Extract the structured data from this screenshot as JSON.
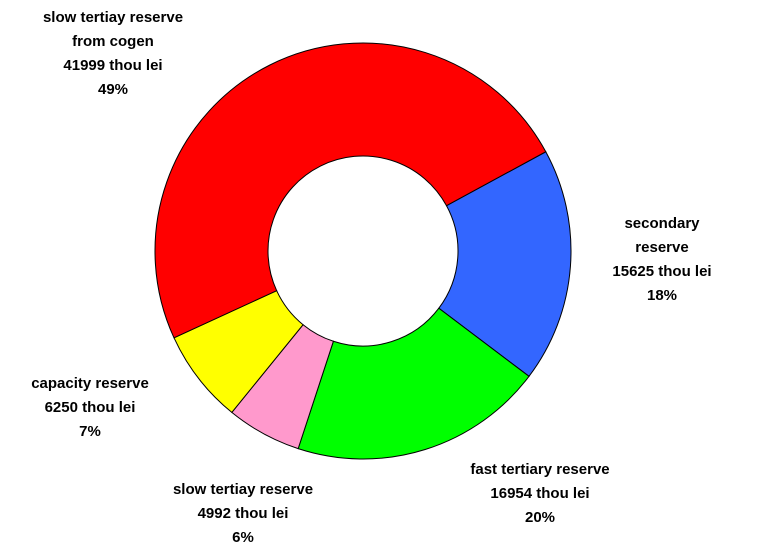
{
  "chart_data": {
    "type": "donut",
    "categories": [
      "secondary reserve",
      "fast tertiary reserve",
      "slow tertiay reserve",
      "capacity reserve",
      "slow tertiay reserve\nfrom cogen"
    ],
    "values": [
      15625,
      16954,
      4992,
      6250,
      41999
    ],
    "value_labels": [
      "15625 thou lei",
      "16954 thou lei",
      "4992 thou lei",
      "6250 thou lei",
      "41999 thou lei"
    ],
    "percent_labels": [
      "18%",
      "20%",
      "6%",
      "7%",
      "49%"
    ],
    "colors": [
      "#3366ff",
      "#00ff00",
      "#ff99cc",
      "#ffff00",
      "#ff0000"
    ]
  }
}
